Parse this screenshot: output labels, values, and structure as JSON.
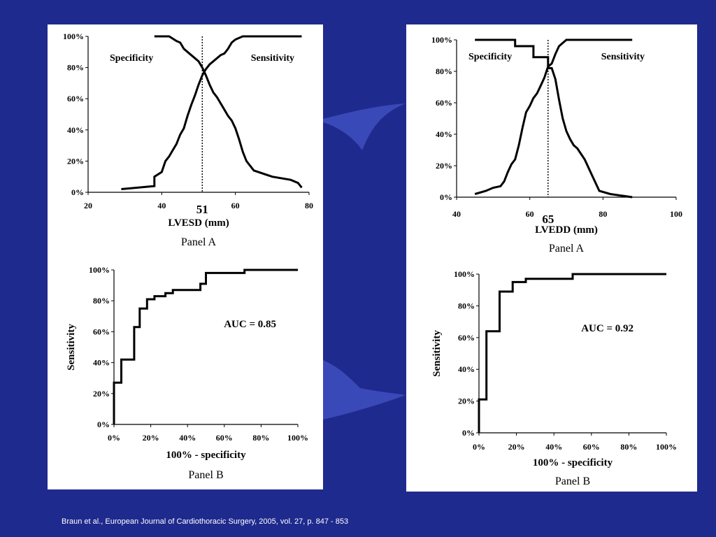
{
  "citation": "Braun et al., European Journal of Cardiothoracic Surgery, 2005, vol. 27, p. 847 - 853",
  "chart_data": [
    {
      "id": "lvesd_curves",
      "type": "line",
      "xlabel": "LVESD (mm)",
      "ylabel": "",
      "panel_label": "Panel A",
      "xlim": [
        20,
        80
      ],
      "ylim": [
        0,
        100
      ],
      "x_ticks": [
        "20",
        "40",
        "60",
        "80"
      ],
      "y_ticks": [
        "0%",
        "20%",
        "40%",
        "60%",
        "80%",
        "100%"
      ],
      "cutoff": {
        "x": 51,
        "label": "51"
      },
      "annotations": {
        "left": "Specificity",
        "right": "Sensitivity"
      },
      "series": [
        {
          "name": "Specificity",
          "x": [
            38,
            42,
            44,
            45,
            46,
            47,
            48,
            49,
            50,
            51,
            52,
            53,
            54,
            55,
            56,
            57,
            58,
            59,
            60,
            61,
            62,
            63,
            65,
            70,
            75,
            77,
            78
          ],
          "y": [
            100,
            100,
            97,
            96,
            92,
            90,
            88,
            86,
            84,
            80,
            75,
            69,
            64,
            61,
            57,
            53,
            49,
            46,
            41,
            34,
            26,
            20,
            14,
            10,
            8,
            6,
            3
          ]
        },
        {
          "name": "Sensitivity",
          "x": [
            29,
            38,
            38,
            40,
            41,
            42,
            43,
            44,
            45,
            46,
            47,
            48,
            49,
            50,
            51,
            52,
            53,
            54,
            55,
            56,
            57,
            58,
            59,
            60,
            61,
            62,
            63,
            64,
            66,
            68,
            70,
            72,
            74,
            76,
            78
          ],
          "y": [
            2,
            4,
            10,
            13,
            20,
            23,
            27,
            31,
            37,
            41,
            49,
            56,
            62,
            69,
            75,
            79,
            82,
            84,
            86,
            88,
            89,
            92,
            96,
            98,
            99,
            100,
            100,
            100,
            100,
            100,
            100,
            100,
            100,
            100,
            100
          ]
        }
      ]
    },
    {
      "id": "lvesd_roc",
      "type": "line",
      "xlabel": "100% - specificity",
      "ylabel": "Sensitivity",
      "panel_label": "Panel B",
      "xlim": [
        0,
        100
      ],
      "ylim": [
        0,
        100
      ],
      "x_ticks": [
        "0%",
        "20%",
        "40%",
        "60%",
        "80%",
        "100%"
      ],
      "y_ticks": [
        "0%",
        "20%",
        "40%",
        "60%",
        "80%",
        "100%"
      ],
      "annotation": "AUC = 0.85",
      "series": [
        {
          "name": "ROC",
          "step": true,
          "x": [
            0,
            0,
            4,
            4,
            11,
            11,
            14,
            14,
            18,
            18,
            22,
            22,
            28,
            28,
            32,
            32,
            47,
            47,
            50,
            50,
            71,
            71,
            100
          ],
          "y": [
            0,
            27,
            27,
            42,
            42,
            63,
            63,
            75,
            75,
            81,
            81,
            83,
            83,
            85,
            85,
            87,
            87,
            91,
            91,
            98,
            98,
            100,
            100
          ]
        }
      ]
    },
    {
      "id": "lvedd_curves",
      "type": "line",
      "xlabel": "LVEDD (mm)",
      "ylabel": "",
      "panel_label": "Panel A",
      "xlim": [
        40,
        100
      ],
      "ylim": [
        0,
        100
      ],
      "x_ticks": [
        "40",
        "60",
        "80",
        "100"
      ],
      "y_ticks": [
        "0%",
        "20%",
        "40%",
        "60%",
        "80%",
        "100%"
      ],
      "cutoff": {
        "x": 65,
        "label": "65"
      },
      "annotations": {
        "left": "Specificity",
        "right": "Sensitivity"
      },
      "series": [
        {
          "name": "Specificity",
          "x": [
            45,
            50,
            56,
            56,
            61,
            61,
            65,
            65,
            66,
            67,
            68,
            69,
            70,
            71,
            72,
            73,
            75,
            77,
            79,
            82,
            88
          ],
          "y": [
            100,
            100,
            100,
            96,
            96,
            89,
            89,
            82,
            82,
            75,
            62,
            50,
            42,
            37,
            33,
            31,
            24,
            14,
            4,
            2,
            0
          ]
        },
        {
          "name": "Sensitivity",
          "x": [
            45,
            48,
            50,
            52,
            53,
            54,
            55,
            56,
            57,
            58,
            59,
            60,
            61,
            62,
            63,
            64,
            65,
            66,
            67,
            68,
            70,
            75,
            80,
            88
          ],
          "y": [
            2,
            4,
            6,
            7,
            10,
            16,
            21,
            24,
            33,
            44,
            54,
            58,
            63,
            66,
            71,
            76,
            83,
            85,
            91,
            96,
            100,
            100,
            100,
            100
          ]
        }
      ]
    },
    {
      "id": "lvedd_roc",
      "type": "line",
      "xlabel": "100% - specificity",
      "ylabel": "Sensitivity",
      "panel_label": "Panel B",
      "xlim": [
        0,
        100
      ],
      "ylim": [
        0,
        100
      ],
      "x_ticks": [
        "0%",
        "20%",
        "40%",
        "60%",
        "80%",
        "100%"
      ],
      "y_ticks": [
        "0%",
        "20%",
        "40%",
        "60%",
        "80%",
        "100%"
      ],
      "annotation": "AUC = 0.92",
      "series": [
        {
          "name": "ROC",
          "step": true,
          "x": [
            0,
            0,
            4,
            4,
            11,
            11,
            18,
            18,
            25,
            25,
            50,
            50,
            100
          ],
          "y": [
            0,
            21,
            21,
            64,
            64,
            89,
            89,
            95,
            95,
            97,
            97,
            100,
            100
          ]
        }
      ]
    }
  ]
}
